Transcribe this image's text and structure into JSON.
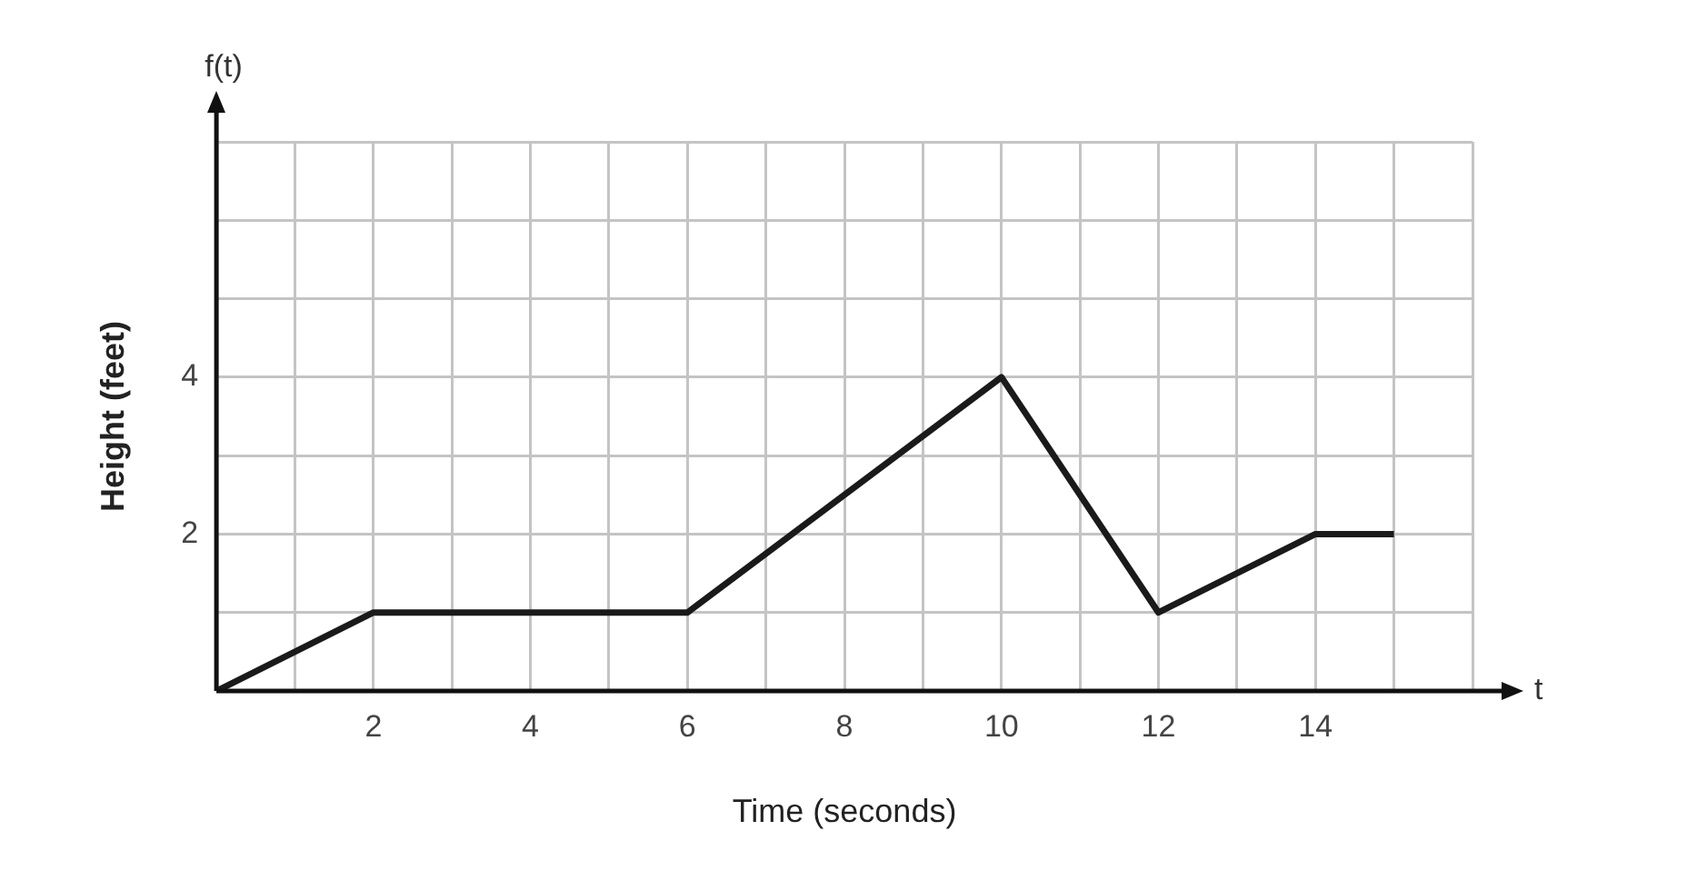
{
  "chart_data": {
    "type": "line",
    "xlabel": "Time (seconds)",
    "ylabel": "Height (feet)",
    "annotations": [
      "f(t)",
      "t"
    ],
    "x": [
      0,
      2,
      6,
      10,
      12,
      14,
      15
    ],
    "series": [
      {
        "color": "#1a1a1a",
        "values": [
          0,
          1,
          1,
          4,
          1,
          2,
          2
        ]
      }
    ],
    "xlim": [
      0,
      16
    ],
    "xticks": [
      {
        "value": 0,
        "label": null
      },
      {
        "value": 1,
        "label": null
      },
      2,
      {
        "value": 3,
        "label": null
      },
      4,
      {
        "value": 5,
        "label": null
      },
      6,
      {
        "value": 7,
        "label": null
      },
      8,
      {
        "value": 9,
        "label": null
      },
      10,
      {
        "value": 11,
        "label": null
      },
      12,
      {
        "value": 13,
        "label": null
      },
      14,
      {
        "value": 15,
        "label": null
      },
      {
        "value": 16,
        "label": null
      }
    ],
    "ylim": [
      0,
      7
    ],
    "yticks": [
      {
        "value": 0,
        "label": null
      },
      {
        "value": 1,
        "label": null
      },
      2,
      {
        "value": 3,
        "label": null
      },
      4,
      {
        "value": 5,
        "label": null
      },
      {
        "value": 6,
        "label": null
      },
      {
        "value": 7,
        "label": null
      }
    ],
    "grid": true,
    "legend": false,
    "marker": "none",
    "line_style": "solid"
  }
}
